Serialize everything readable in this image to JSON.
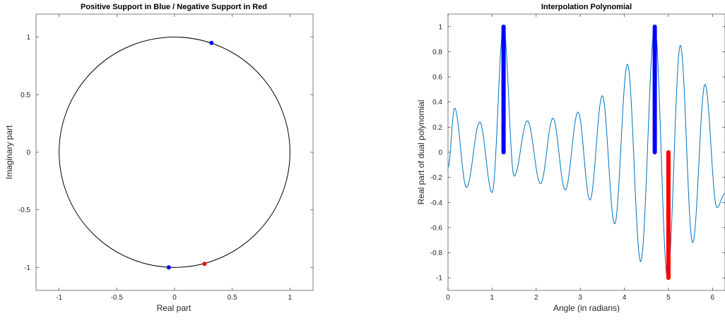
{
  "chart_data": [
    {
      "type": "scatter",
      "title": "Positive Support in Blue / Negative Support in Red",
      "xlabel": "Real part",
      "ylabel": "Imaginary part",
      "xlim": [
        -1.2,
        1.2
      ],
      "ylim": [
        -1.2,
        1.2
      ],
      "xticks": [
        "-1",
        "-0.5",
        "0",
        "0.5",
        "1"
      ],
      "yticks": [
        "-1",
        "-0.5",
        "0",
        "0.5",
        "1"
      ],
      "unit_circle": true,
      "grid": false,
      "series": [
        {
          "color": "#0000ff",
          "points": [
            [
              0.32,
              0.95
            ],
            [
              -0.05,
              -1.0
            ]
          ]
        },
        {
          "color": "#ff0000",
          "points": [
            [
              0.26,
              -0.97
            ]
          ]
        }
      ]
    },
    {
      "type": "line",
      "title": "Interpolation Polynomial",
      "xlabel": "Angle (in radians)",
      "ylabel": "Real part of dual polynomial",
      "xlim": [
        0,
        6.2832
      ],
      "ylim": [
        -1.1,
        1.1
      ],
      "xticks": [
        "0",
        "1",
        "2",
        "3",
        "4",
        "5",
        "6"
      ],
      "yticks": [
        "-1",
        "-0.8",
        "-0.6",
        "-0.4",
        "-0.2",
        "0",
        "0.2",
        "0.4",
        "0.6",
        "0.8",
        "1"
      ],
      "grid": false,
      "curve": {
        "color": "#0072bd",
        "x": [
          0,
          0.15,
          0.42,
          0.72,
          1.0,
          1.26,
          1.5,
          1.8,
          2.1,
          2.38,
          2.66,
          2.95,
          3.22,
          3.5,
          3.78,
          4.07,
          4.37,
          4.69,
          4.98,
          5.27,
          5.55,
          5.83,
          6.1,
          6.2832
        ],
        "y": [
          -0.12,
          0.35,
          -0.28,
          0.24,
          -0.32,
          1.0,
          -0.19,
          0.25,
          -0.25,
          0.27,
          -0.3,
          0.32,
          -0.38,
          0.45,
          -0.57,
          0.7,
          -0.87,
          1.0,
          -1.0,
          0.85,
          -0.72,
          0.54,
          -0.44,
          -0.33
        ]
      },
      "stems": [
        {
          "x": 1.26,
          "y": 1.0,
          "color": "#0000ff"
        },
        {
          "x": 4.69,
          "y": 1.0,
          "color": "#0000ff"
        },
        {
          "x": 5.0,
          "y": -1.0,
          "color": "#ff0000"
        }
      ]
    }
  ]
}
